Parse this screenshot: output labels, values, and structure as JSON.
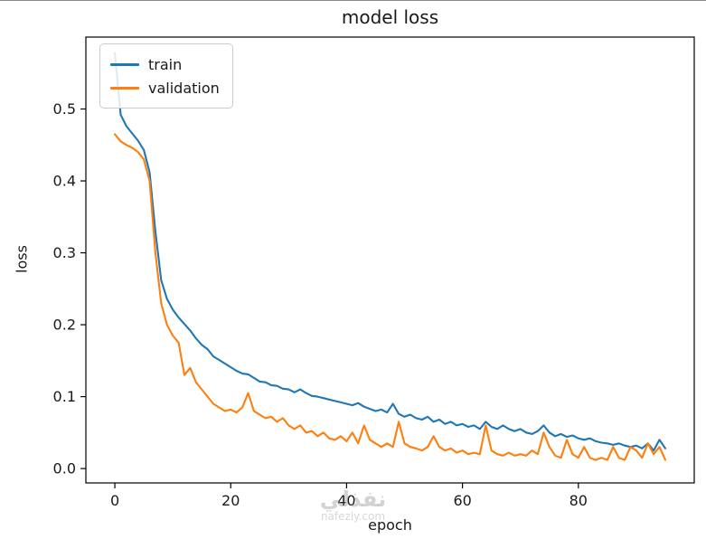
{
  "title": "model loss",
  "xlabel": "epoch",
  "ylabel": "loss",
  "legend": {
    "items": [
      {
        "label": "train",
        "color": "#1f77b4"
      },
      {
        "label": "validation",
        "color": "#ff7f0e"
      }
    ]
  },
  "watermark": {
    "arabic": "نفذلي",
    "latin": "nafezly.com"
  },
  "chart_data": {
    "type": "line",
    "title": "model loss",
    "xlabel": "epoch",
    "ylabel": "loss",
    "xlim": [
      -5,
      100
    ],
    "ylim": [
      -0.02,
      0.6
    ],
    "xticks": [
      0,
      20,
      40,
      60,
      80
    ],
    "yticks": [
      0.0,
      0.1,
      0.2,
      0.3,
      0.4,
      0.5
    ],
    "grid": false,
    "legend_position": "upper left",
    "x": [
      0,
      1,
      2,
      3,
      4,
      5,
      6,
      7,
      8,
      9,
      10,
      11,
      12,
      13,
      14,
      15,
      16,
      17,
      18,
      19,
      20,
      21,
      22,
      23,
      24,
      25,
      26,
      27,
      28,
      29,
      30,
      31,
      32,
      33,
      34,
      35,
      36,
      37,
      38,
      39,
      40,
      41,
      42,
      43,
      44,
      45,
      46,
      47,
      48,
      49,
      50,
      51,
      52,
      53,
      54,
      55,
      56,
      57,
      58,
      59,
      60,
      61,
      62,
      63,
      64,
      65,
      66,
      67,
      68,
      69,
      70,
      71,
      72,
      73,
      74,
      75,
      76,
      77,
      78,
      79,
      80,
      81,
      82,
      83,
      84,
      85,
      86,
      87,
      88,
      89,
      90,
      91,
      92,
      93,
      94,
      95
    ],
    "series": [
      {
        "name": "train",
        "color": "#1f77b4",
        "values": [
          0.578,
          0.492,
          0.476,
          0.466,
          0.456,
          0.443,
          0.412,
          0.33,
          0.262,
          0.236,
          0.221,
          0.21,
          0.201,
          0.192,
          0.181,
          0.172,
          0.166,
          0.156,
          0.151,
          0.146,
          0.141,
          0.136,
          0.132,
          0.131,
          0.126,
          0.121,
          0.12,
          0.116,
          0.115,
          0.111,
          0.11,
          0.106,
          0.11,
          0.105,
          0.101,
          0.1,
          0.098,
          0.096,
          0.094,
          0.092,
          0.09,
          0.088,
          0.091,
          0.086,
          0.083,
          0.08,
          0.082,
          0.078,
          0.09,
          0.076,
          0.072,
          0.075,
          0.07,
          0.068,
          0.072,
          0.065,
          0.068,
          0.062,
          0.065,
          0.06,
          0.062,
          0.058,
          0.06,
          0.055,
          0.065,
          0.058,
          0.055,
          0.06,
          0.055,
          0.052,
          0.055,
          0.05,
          0.048,
          0.052,
          0.06,
          0.05,
          0.045,
          0.048,
          0.044,
          0.046,
          0.042,
          0.04,
          0.042,
          0.038,
          0.036,
          0.035,
          0.033,
          0.035,
          0.032,
          0.03,
          0.032,
          0.028,
          0.035,
          0.025,
          0.04,
          0.028
        ]
      },
      {
        "name": "validation",
        "color": "#ff7f0e",
        "values": [
          0.465,
          0.455,
          0.45,
          0.446,
          0.44,
          0.43,
          0.4,
          0.3,
          0.23,
          0.2,
          0.185,
          0.175,
          0.13,
          0.14,
          0.12,
          0.11,
          0.1,
          0.09,
          0.085,
          0.08,
          0.082,
          0.078,
          0.085,
          0.105,
          0.08,
          0.075,
          0.07,
          0.072,
          0.065,
          0.07,
          0.06,
          0.055,
          0.06,
          0.05,
          0.052,
          0.045,
          0.05,
          0.042,
          0.04,
          0.045,
          0.038,
          0.05,
          0.035,
          0.06,
          0.04,
          0.035,
          0.03,
          0.035,
          0.03,
          0.065,
          0.035,
          0.03,
          0.028,
          0.025,
          0.03,
          0.045,
          0.03,
          0.025,
          0.028,
          0.022,
          0.025,
          0.02,
          0.022,
          0.02,
          0.06,
          0.025,
          0.02,
          0.018,
          0.022,
          0.018,
          0.02,
          0.018,
          0.025,
          0.02,
          0.05,
          0.03,
          0.018,
          0.015,
          0.04,
          0.02,
          0.015,
          0.03,
          0.015,
          0.012,
          0.015,
          0.012,
          0.03,
          0.015,
          0.012,
          0.03,
          0.025,
          0.015,
          0.035,
          0.02,
          0.03,
          0.012
        ]
      }
    ]
  }
}
